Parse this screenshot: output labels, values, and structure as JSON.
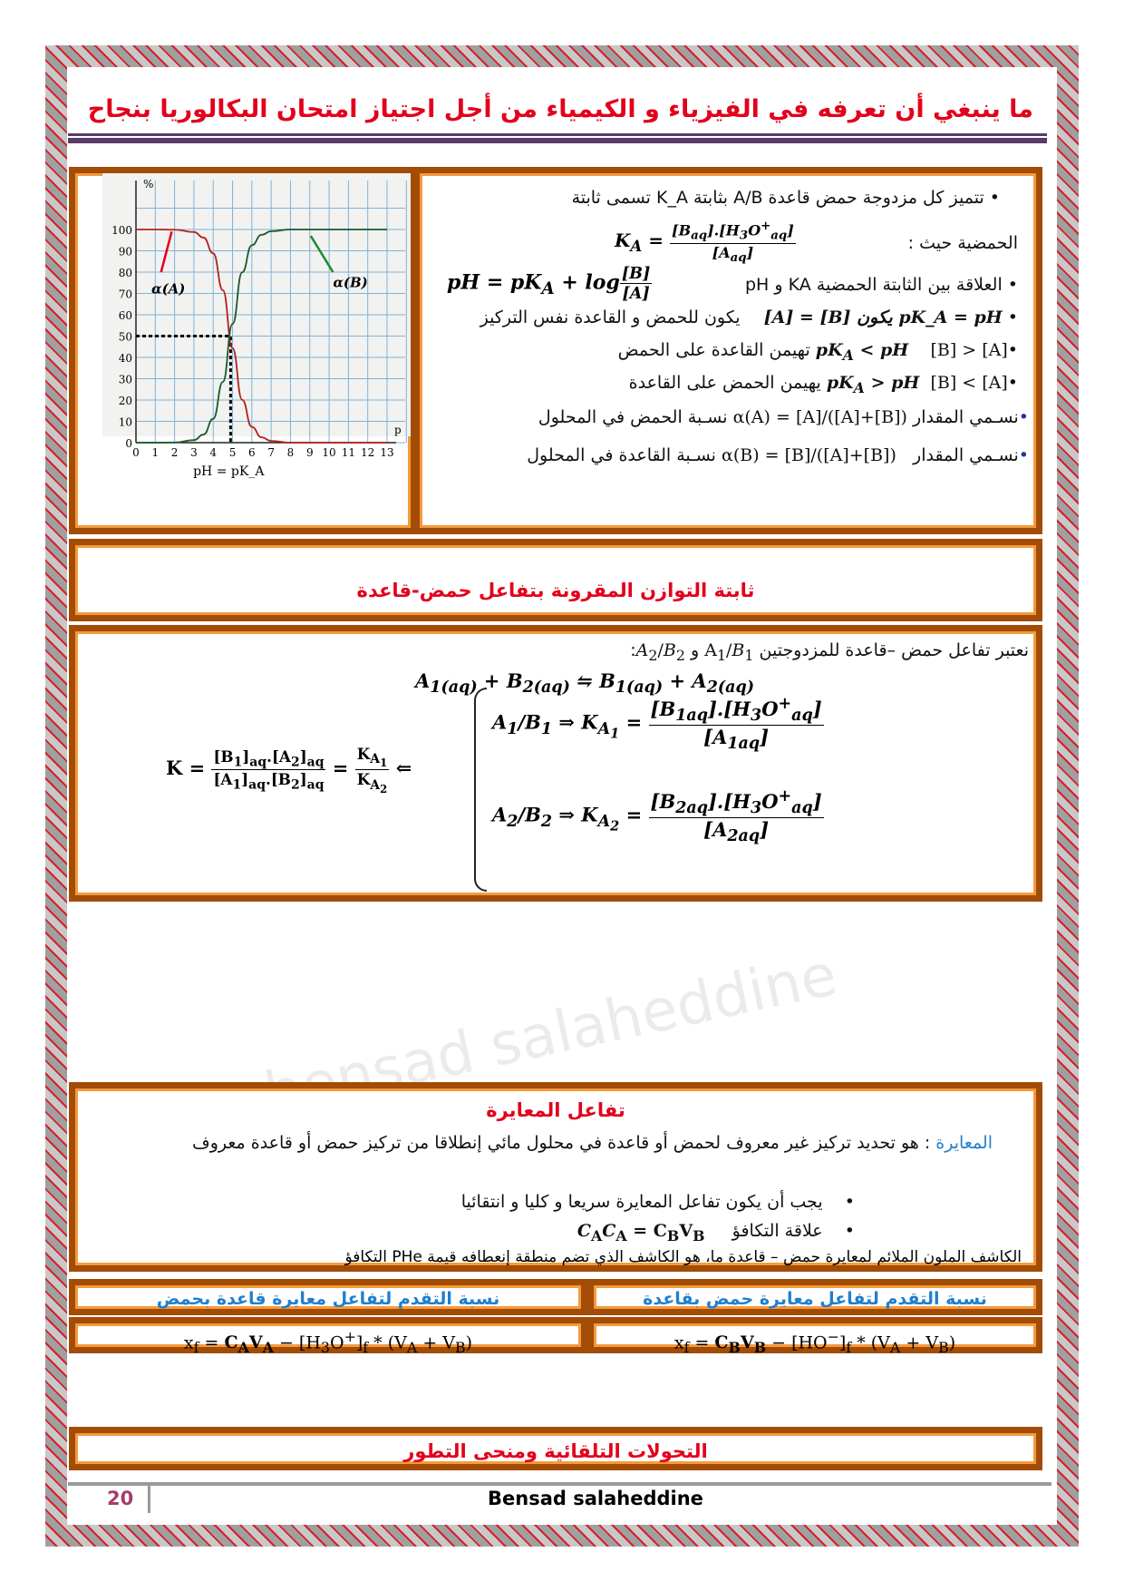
{
  "header": {
    "title": "ما ينبغي أن تعرفه في الفيزياء و الكيمياء من أجل اجتياز  امتحان البكالوريا بنجاح"
  },
  "section1": {
    "bullets": [
      "تتميز كل مزدوجة حمض قاعدة A/B بثابتة K_A تسمى ثابتة",
      "الحمضية  حيث :",
      "العلاقة بين الثابتة الحمضية  KA و pH",
      "يكون للحمض و القاعدة نفس التركيز",
      "تهيمن القاعدة على الحمض",
      "يهيمن الحمض على القاعدة",
      "نسـمي  المقدار",
      "نسـبة الحمض في المحلول",
      "نسـبة القاعدة في المحلول"
    ],
    "formulas": {
      "ka": "K_A = [B_aq].[H3O+_aq] / [A_aq]",
      "ph": "pH = pK_A + log [B]/[A]",
      "eq": "pK_A = pH يكون [B] = [A]",
      "gt": "pK_A < pH  [B] > [A]",
      "lt": "pK_A > pH  [B] < [A]",
      "alphaA": "α(A) = [A]/([A]+[B])",
      "alphaB": "α(B) = [B]/([A]+[B])"
    }
  },
  "chart_data": {
    "type": "line",
    "ylabel": "%",
    "xlabel": "pH = pK_A",
    "x_axis_end_label": "p",
    "xlim": [
      0,
      13
    ],
    "ylim": [
      0,
      100
    ],
    "grid": true,
    "xticks": [
      "0",
      "1",
      "2",
      "3",
      "4",
      "5",
      "6",
      "7",
      "8",
      "9",
      "10",
      "11",
      "12",
      "13"
    ],
    "yticks": [
      "0",
      "10",
      "20",
      "30",
      "40",
      "50",
      "60",
      "70",
      "80",
      "90",
      "100"
    ],
    "x": [
      0,
      1,
      2,
      3,
      3.5,
      4,
      4.5,
      5,
      5.5,
      6,
      6.5,
      7,
      8,
      9,
      10,
      11,
      12,
      13
    ],
    "series": [
      {
        "name": "α(A)",
        "color": "#b22222",
        "values": [
          100,
          100,
          99.9,
          98.8,
          96.2,
          88.8,
          71.5,
          44.3,
          20.1,
          7.4,
          2.5,
          0.8,
          0,
          0,
          0,
          0,
          0,
          0
        ]
      },
      {
        "name": "α(B)",
        "color": "#1d5a2a",
        "values": [
          0,
          0,
          0.1,
          1.2,
          3.8,
          11.2,
          28.5,
          55.7,
          79.9,
          92.6,
          97.5,
          99.2,
          100,
          100,
          100,
          100,
          100,
          100
        ]
      }
    ],
    "annotation": {
      "pka": 4.9,
      "level": 50
    }
  },
  "section2": {
    "title": "ثابتة التوازن المقرونة بتفاعل حمض-قاعدة"
  },
  "section3": {
    "intro": "نعتبر تفاعل حمض –قاعدة  للمزدوجتين A1/B1 و A2/B2:",
    "reaction": "A1(aq) + B2(aq) ⇋ B1(aq) + A2(aq)",
    "k": "K = [B1]aq.[A2]aq / [A1]aq.[B2]aq = KA1/KA2 ⇐",
    "ka1": "A1/B1 ⇒ KA1 = [B1aq].[H3O+aq] / [A1aq]",
    "ka2": "A2/B2 ⇒ KA2 = [B2aq].[H3O+aq] / [A2aq]"
  },
  "titration": {
    "title": "تفاعل  المعايرة",
    "term": "المعايرة",
    "definition": " : هو تحديد تركيز غير معروف لحمض أو قاعدة في محلول مائي إنطلاقا من تركيز حمض أو قاعدة معروف",
    "bullet1": "يجب أن يكون تفاعل المعايرة سريعا و كليا و انتقائيا",
    "bullet2": "علاقة التكافؤ",
    "equiv": "CACA = CBVB",
    "bullet3": "الكاشف الملون الملائم لمعايرة  حمض – قاعدة ما، هو الكاشف الذي  تضم منطقة إنعطافه قيمة PHe التكافؤ",
    "head_right": "نسبة التقدم لتفاعل معايرة حمض بقاعدة",
    "head_left": "نسبة التقدم لتفاعل معايرة قاعدة بحمض",
    "formula_right": "xf = CBVB − [HO−]f * (VA + VB)",
    "formula_left": "xf = CAVA − [H3O+]f * (VA + VB)"
  },
  "section4": {
    "title": "التحولات التلقائية ومنحى التطور"
  },
  "footer": {
    "page": "20",
    "author": "Bensad salaheddine"
  },
  "watermark": "bensad salaheddine"
}
